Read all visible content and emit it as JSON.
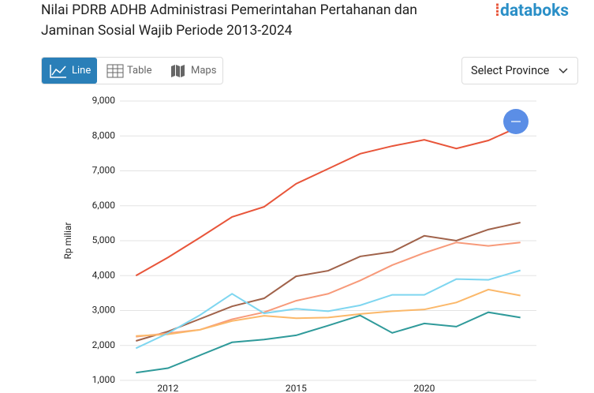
{
  "ui": {
    "title": "Nilai PDRB ADHB Administrasi Pemerintahan Pertahanan dan Jaminan Sosial Wajib Periode 2013-2024",
    "logo": "databoks",
    "buttons": [
      "Line",
      "Table",
      "Maps"
    ],
    "select": "Select Province"
  },
  "chart_data": {
    "type": "line",
    "y_label": "Rp miliar",
    "categories": [
      null,
      "2012",
      null,
      null,
      null,
      "2015",
      null,
      null,
      null,
      "2020",
      null,
      null,
      null
    ],
    "ylim": [
      1000,
      9000
    ],
    "yticks": [
      {
        "value": 1000,
        "label": "1,000"
      },
      {
        "value": 2000,
        "label": "2,000"
      },
      {
        "value": 3000,
        "label": "3,000"
      },
      {
        "value": 4000,
        "label": "4,000"
      },
      {
        "value": 5000,
        "label": "5,000"
      },
      {
        "value": 6000,
        "label": "6,000"
      },
      {
        "value": 7000,
        "label": "7,000"
      },
      {
        "value": 8000,
        "label": "8,000"
      },
      {
        "value": 9000,
        "label": "9,000"
      }
    ],
    "grid": true,
    "series": [
      {
        "color": "#e8553a",
        "values": [
          4000,
          4520,
          5090,
          5680,
          5970,
          6630,
          7060,
          7490,
          7710,
          7890,
          7640,
          7870,
          8280
        ]
      },
      {
        "color": "#a0624a",
        "values": [
          2130,
          2400,
          2760,
          3120,
          3350,
          3980,
          4140,
          4550,
          4680,
          5140,
          5000,
          5320,
          5520
        ]
      },
      {
        "color": "#f79a7a",
        "values": [
          2250,
          2350,
          2450,
          2750,
          2950,
          3280,
          3480,
          3860,
          4300,
          4650,
          4950,
          4850,
          4950
        ]
      },
      {
        "color": "#fbb86a",
        "values": [
          2270,
          2320,
          2450,
          2700,
          2850,
          2780,
          2800,
          2900,
          2980,
          3030,
          3230,
          3600,
          3430
        ]
      },
      {
        "color": "#7fd6f0",
        "values": [
          1920,
          2350,
          2870,
          3480,
          2920,
          3050,
          2980,
          3150,
          3450,
          3450,
          3900,
          3880,
          4150
        ]
      },
      {
        "color": "#2f9a9a",
        "values": [
          1220,
          1350,
          1720,
          2090,
          2170,
          2290,
          2570,
          2860,
          2360,
          2630,
          2540,
          2950,
          2800
        ]
      }
    ]
  }
}
